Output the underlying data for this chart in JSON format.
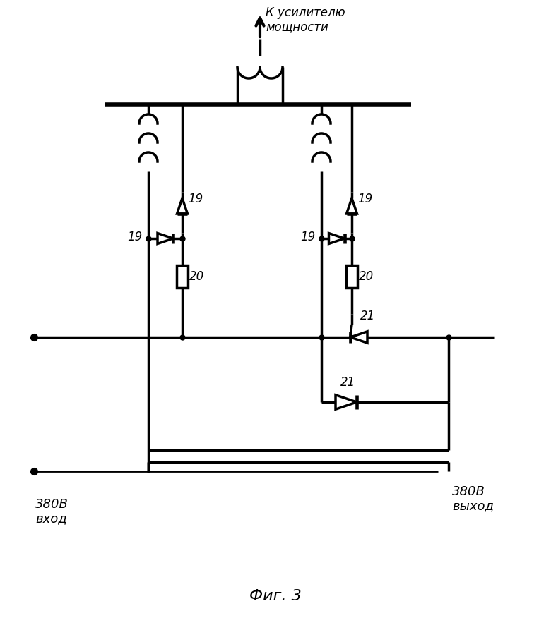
{
  "title": "Фиг. 3",
  "label_top": "К усилителю\nмощности",
  "label_bl": "380В\nвход",
  "label_br": "380В\nвыход",
  "bg_color": "#ffffff",
  "lc": "#000000",
  "lw": 2.5
}
